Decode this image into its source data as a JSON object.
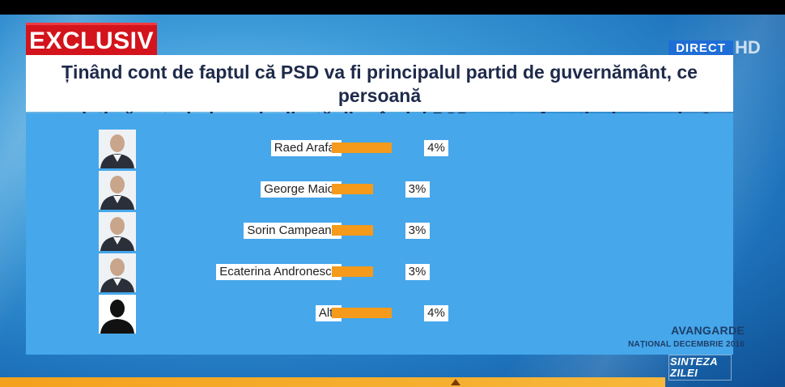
{
  "badge": {
    "label": "EXCLUSIV"
  },
  "live": {
    "label": "DIRECT",
    "hd": "HD"
  },
  "question": {
    "line1": "Ținând cont de faptul că PSD va fi principalul partid de guvernământ, ce persoană",
    "line2": "credeți că ar trebui nominalizată din rândul PSD pentru funcția de premier?"
  },
  "source": {
    "name": "AVANGARDE",
    "date": "NAȚIONAL DECEMBRIE 2016"
  },
  "show_logo": {
    "line1": "SINTEZA",
    "line2": "ZILEI"
  },
  "colors": {
    "bar": "#f59a1a",
    "badge": "#d3141c",
    "panel": "#46a7eb"
  },
  "chart_data": {
    "type": "bar",
    "orientation": "horizontal",
    "categories": [
      "Raed Arafat",
      "George Maior",
      "Sorin Campeanu",
      "Ecaterina Andronescu",
      "Altii"
    ],
    "values": [
      4,
      3,
      3,
      3,
      4
    ],
    "value_labels": [
      "4%",
      "3%",
      "3%",
      "3%",
      "4%"
    ],
    "unit": "%",
    "title": "",
    "xlabel": "",
    "ylabel": "",
    "grid": false,
    "legend": "none"
  }
}
